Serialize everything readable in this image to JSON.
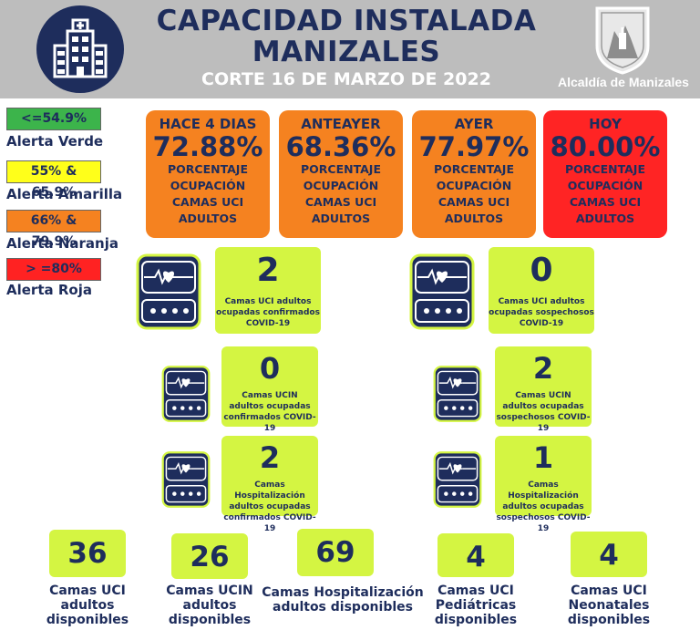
{
  "header": {
    "title_line1": "CAPACIDAD INSTALADA",
    "title_line2": "MANIZALES",
    "cut_date": "CORTE 16 DE MARZO DE 2022",
    "org": "Alcaldía de Manizales",
    "colors": {
      "band": "#bdbdbd",
      "navy": "#1e2d5c"
    }
  },
  "legend": [
    {
      "range": "<=54.9%",
      "label": "Alerta Verde",
      "color": "#3cb44b"
    },
    {
      "range": "55% & 65.9%",
      "label": "Alerta Amarilla",
      "color": "#ffff1a"
    },
    {
      "range": "66% & 79.9%",
      "label": "Alerta Naranja",
      "color": "#f58220"
    },
    {
      "range": "> =80%",
      "label": "Alerta Roja",
      "color": "#ff2222"
    }
  ],
  "occupancy": [
    {
      "period": "HACE 4 DIAS",
      "value": "72.88%",
      "l1": "PORCENTAJE",
      "l2": "OCUPACIÓN",
      "l3": "CAMAS UCI",
      "l4": "ADULTOS",
      "color": "#f58220"
    },
    {
      "period": "ANTEAYER",
      "value": "68.36%",
      "l1": "PORCENTAJE",
      "l2": "OCUPACIÓN",
      "l3": "CAMAS UCI",
      "l4": "ADULTOS",
      "color": "#f58220"
    },
    {
      "period": "AYER",
      "value": "77.97%",
      "l1": "PORCENTAJE",
      "l2": "OCUPACIÓN",
      "l3": "CAMAS UCI",
      "l4": "ADULTOS",
      "color": "#f58220"
    },
    {
      "period": "HOY",
      "value": "80.00%",
      "l1": "PORCENTAJE",
      "l2": "OCUPACIÓN",
      "l3": "CAMAS UCI",
      "l4": "ADULTOS",
      "color": "#ff2424"
    }
  ],
  "stats": {
    "uci_confirmed": {
      "value": "2",
      "l1": "Camas UCI adultos",
      "l2": "ocupadas confirmados",
      "l3": "COVID-19"
    },
    "uci_suspected": {
      "value": "0",
      "l1": "Camas UCI adultos",
      "l2": "ocupadas sospechosos",
      "l3": "COVID-19"
    },
    "ucin_confirmed": {
      "value": "0",
      "l1": "Camas  UCIN",
      "l2": "adultos ocupadas",
      "l3": "confirmados COVID-19"
    },
    "ucin_suspected": {
      "value": "2",
      "l1": "Camas  UCIN",
      "l2": "adultos ocupadas",
      "l3": "sospechosos COVID-19"
    },
    "hosp_confirmed": {
      "value": "2",
      "l1": "Camas  Hospitalización",
      "l2": "adultos ocupadas",
      "l3": "confirmados COVID-19"
    },
    "hosp_suspected": {
      "value": "1",
      "l1": "Camas  Hospitalización",
      "l2": "adultos ocupadas",
      "l3": "sospechosos COVID-19"
    }
  },
  "available": [
    {
      "value": "36",
      "l1": "Camas UCI",
      "l2": "adultos",
      "l3": "disponibles"
    },
    {
      "value": "26",
      "l1": "Camas UCIN",
      "l2": "adultos",
      "l3": "disponibles"
    },
    {
      "value": "69",
      "l1": "Camas  Hospitalización",
      "l2": "adultos disponibles",
      "l3": ""
    },
    {
      "value": "4",
      "l1": "Camas  UCI",
      "l2": "Pediátricas",
      "l3": "disponibles"
    },
    {
      "value": "4",
      "l1": "Camas  UCI",
      "l2": "Neonatales",
      "l3": "disponibles"
    }
  ]
}
